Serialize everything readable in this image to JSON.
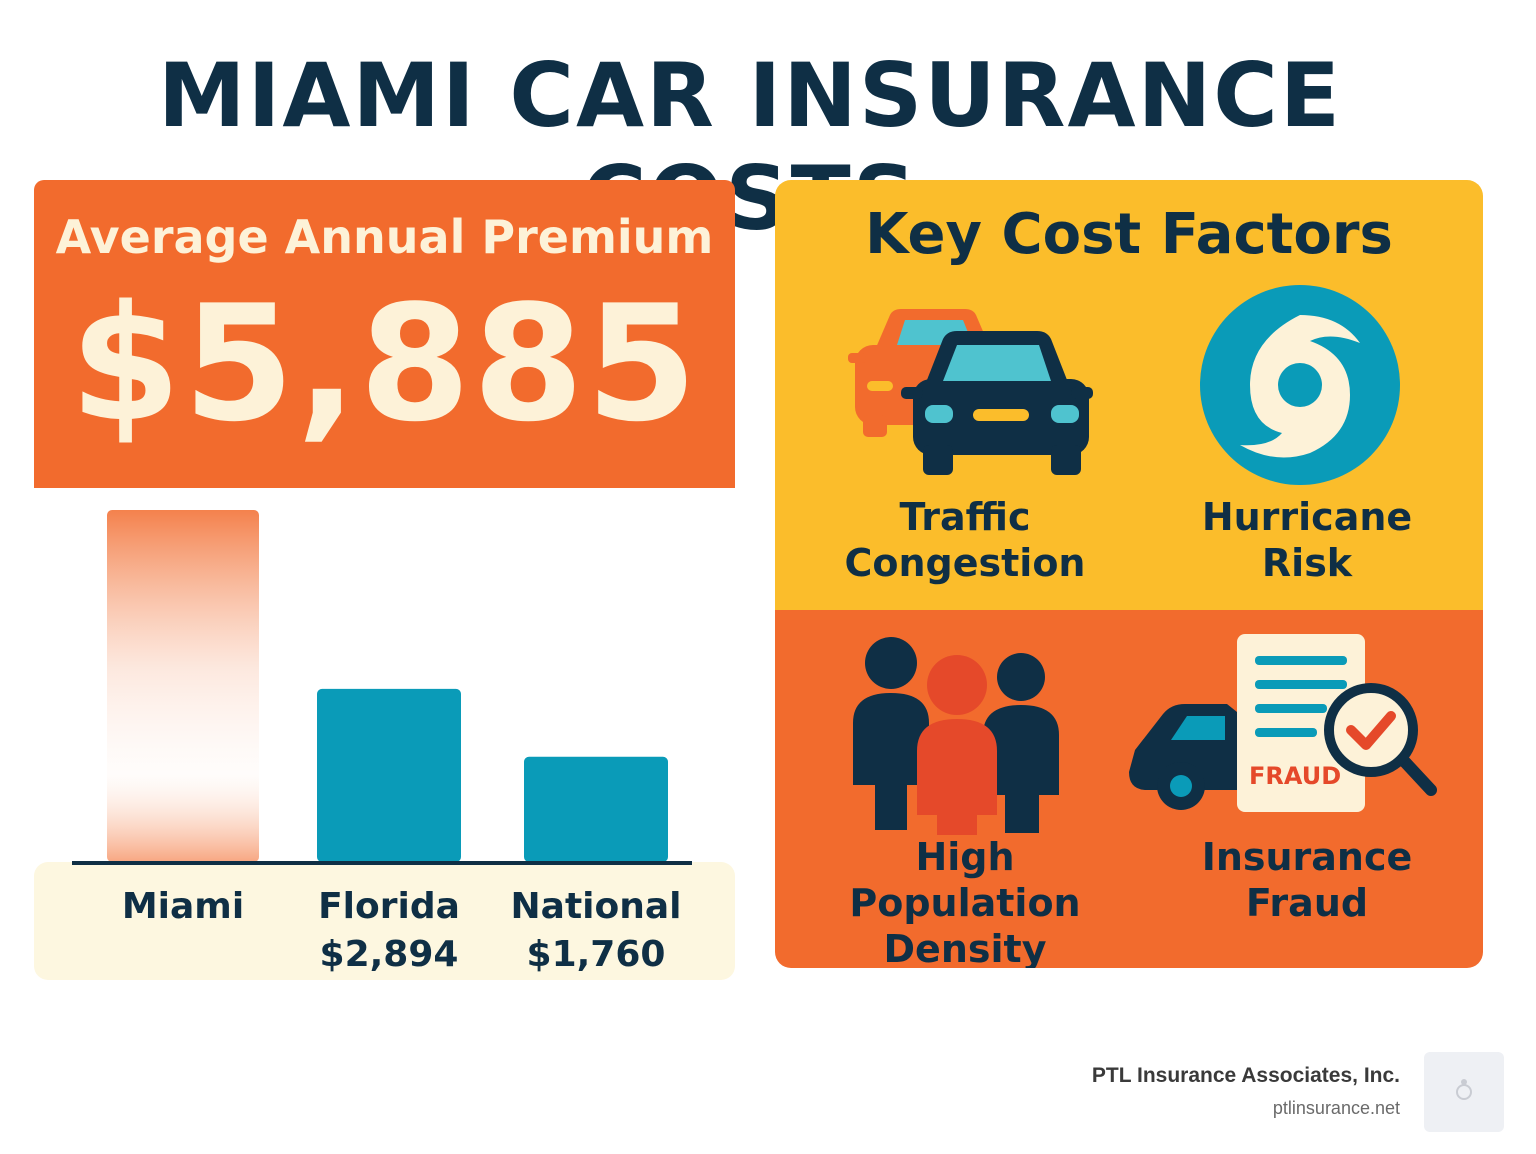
{
  "title": "MIAMI CAR INSURANCE COSTS",
  "premium": {
    "label": "Average Annual Premium",
    "value": "$5,885"
  },
  "chart_data": {
    "type": "bar",
    "categories": [
      "Miami",
      "Florida",
      "National"
    ],
    "values": [
      5885,
      2894,
      1760
    ],
    "value_labels": [
      "",
      "$2,894",
      "$1,760"
    ],
    "title": "",
    "xlabel": "",
    "ylabel": "",
    "grid": false,
    "colors": [
      "#f26b2d",
      "#0a9bb8",
      "#0a9bb8"
    ]
  },
  "factors": {
    "title": "Key Cost Factors",
    "items": [
      {
        "label": "Traffic\nCongestion",
        "icon": "cars-icon"
      },
      {
        "label": "Hurricane\nRisk",
        "icon": "hurricane-icon"
      },
      {
        "label": "High Population\nDensity",
        "icon": "people-icon"
      },
      {
        "label": "Insurance\nFraud",
        "icon": "fraud-icon",
        "badge": "FRAUD"
      }
    ]
  },
  "footer": {
    "company": "PTL Insurance Associates, Inc.",
    "url": "ptlinsurance.net"
  },
  "colors": {
    "navy": "#0f2f45",
    "orange": "#f26b2d",
    "yellow": "#fbbd2b",
    "teal": "#0a9bb8",
    "cream": "#fdf2d8"
  }
}
